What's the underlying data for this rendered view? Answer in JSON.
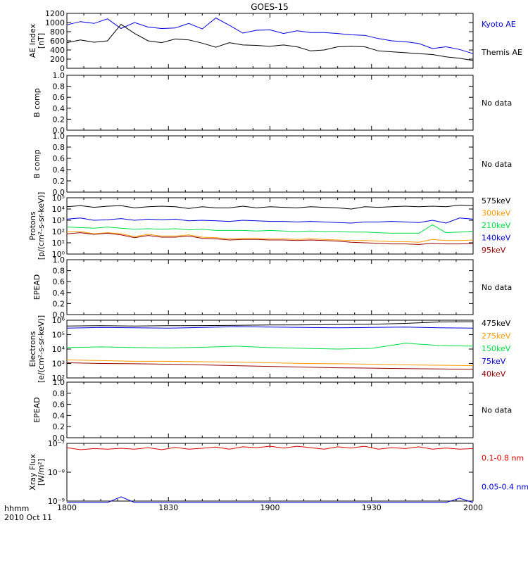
{
  "title": "GOES-15",
  "time_axis": {
    "ticks": [
      "1800",
      "1830",
      "1900",
      "1930",
      "2000"
    ],
    "label_line1": "hhmm",
    "label_line2": "2010 Oct 11"
  },
  "colors": {
    "black": "#000000",
    "blue": "#0000dd",
    "green": "#00dd44",
    "orange": "#ff9900",
    "darkred": "#990000",
    "red": "#dd0000"
  },
  "chart_data": [
    {
      "id": "ae",
      "type": "line",
      "ylabel": [
        "AE Index",
        "[nT]"
      ],
      "ylim": [
        0,
        1200
      ],
      "yscale": "linear",
      "yticks": [
        "0",
        "200",
        "400",
        "600",
        "800",
        "1000",
        "1200"
      ],
      "x": [
        0,
        4,
        8,
        12,
        16,
        20,
        24,
        28,
        32,
        36,
        40,
        44,
        48,
        52,
        56,
        60,
        64,
        68,
        72,
        76,
        80,
        84,
        88,
        92,
        96,
        100,
        104,
        108,
        112,
        116,
        120
      ],
      "series": [
        {
          "name": "Kyoto AE",
          "color": "blue",
          "values": [
            950,
            1020,
            980,
            1080,
            870,
            1000,
            900,
            870,
            880,
            980,
            860,
            1100,
            940,
            770,
            830,
            840,
            760,
            820,
            780,
            780,
            760,
            730,
            720,
            650,
            600,
            580,
            540,
            430,
            470,
            410,
            320
          ]
        },
        {
          "name": "Themis AE",
          "color": "black",
          "values": [
            560,
            620,
            570,
            600,
            960,
            760,
            600,
            560,
            640,
            620,
            550,
            460,
            560,
            510,
            500,
            480,
            510,
            470,
            380,
            400,
            470,
            480,
            470,
            380,
            360,
            340,
            320,
            300,
            250,
            220,
            170
          ]
        }
      ]
    },
    {
      "id": "bcomp1",
      "type": "line",
      "ylabel": [
        "B comp"
      ],
      "ylim": [
        0,
        1
      ],
      "yscale": "linear",
      "yticks": [
        "0.0",
        "0.2",
        "0.4",
        "0.6",
        "0.8",
        "1.0"
      ],
      "note": "No data",
      "series": []
    },
    {
      "id": "bcomp2",
      "type": "line",
      "ylabel": [
        "B comp"
      ],
      "ylim": [
        0,
        1
      ],
      "yscale": "linear",
      "yticks": [
        "0.0",
        "0.2",
        "0.4",
        "0.6",
        "0.8",
        "1.0"
      ],
      "note": "No data",
      "series": []
    },
    {
      "id": "protons",
      "type": "line",
      "ylabel": [
        "Protons",
        "[p/(cm²-s-sr-keV)]"
      ],
      "ylim": [
        0,
        5
      ],
      "yscale": "log",
      "yticks": [
        "10⁰",
        "10¹",
        "10²",
        "10³",
        "10⁴",
        "10⁵"
      ],
      "x": [
        0,
        4,
        8,
        12,
        16,
        20,
        24,
        28,
        32,
        36,
        40,
        44,
        48,
        52,
        56,
        60,
        64,
        68,
        72,
        76,
        80,
        84,
        88,
        92,
        96,
        100,
        104,
        108,
        112,
        116,
        120
      ],
      "series": [
        {
          "name": "575keV",
          "color": "black",
          "values": [
            4.2,
            4.3,
            4.15,
            4.25,
            4.3,
            4.1,
            4.2,
            4.25,
            4.2,
            4.05,
            4.2,
            4.1,
            4.1,
            4.25,
            4.1,
            4.2,
            4.15,
            4.1,
            4.2,
            4.15,
            4.1,
            4.0,
            4.2,
            4.15,
            4.2,
            4.25,
            4.2,
            4.25,
            4.2,
            4.35,
            4.3
          ]
        },
        {
          "name": "300keV",
          "color": "orange",
          "values": [
            2.0,
            2.0,
            1.8,
            1.9,
            1.8,
            1.55,
            1.75,
            1.6,
            1.6,
            1.7,
            1.5,
            1.45,
            1.35,
            1.4,
            1.4,
            1.35,
            1.35,
            1.3,
            1.35,
            1.3,
            1.25,
            1.2,
            1.2,
            1.15,
            1.1,
            1.1,
            1.05,
            1.3,
            1.2,
            1.2,
            1.25
          ]
        },
        {
          "name": "210keV",
          "color": "green",
          "values": [
            2.4,
            2.35,
            2.3,
            2.4,
            2.3,
            2.2,
            2.25,
            2.2,
            2.25,
            2.15,
            2.2,
            2.1,
            2.1,
            2.1,
            2.05,
            2.1,
            2.05,
            2.0,
            2.05,
            2.0,
            2.0,
            1.95,
            1.95,
            1.9,
            1.85,
            1.85,
            1.85,
            2.6,
            1.9,
            1.95,
            2.0
          ]
        },
        {
          "name": "140keV",
          "color": "blue",
          "values": [
            3.1,
            3.2,
            3.0,
            3.05,
            3.15,
            3.0,
            3.1,
            3.05,
            3.1,
            2.95,
            3.0,
            2.95,
            2.9,
            3.0,
            2.95,
            2.9,
            2.9,
            2.85,
            2.9,
            2.85,
            2.8,
            2.75,
            2.85,
            2.85,
            2.9,
            2.85,
            2.8,
            3.0,
            2.75,
            3.2,
            3.1
          ]
        },
        {
          "name": "95keV",
          "color": "darkred",
          "values": [
            1.8,
            1.9,
            1.75,
            1.85,
            1.7,
            1.45,
            1.65,
            1.5,
            1.5,
            1.6,
            1.4,
            1.35,
            1.25,
            1.3,
            1.3,
            1.25,
            1.25,
            1.2,
            1.25,
            1.2,
            1.15,
            1.05,
            1.0,
            0.95,
            0.9,
            0.9,
            0.85,
            0.95,
            0.9,
            0.9,
            0.95
          ]
        }
      ]
    },
    {
      "id": "epead1",
      "type": "line",
      "ylabel": [
        "EPEAD"
      ],
      "ylim": [
        0,
        1
      ],
      "yscale": "linear",
      "yticks": [
        "0.0",
        "0.2",
        "0.4",
        "0.6",
        "0.8",
        "1.0"
      ],
      "note": "No data",
      "series": []
    },
    {
      "id": "electrons",
      "type": "line",
      "ylabel": [
        "Electrons",
        "[e/(cm²-s-sr-keV)]"
      ],
      "ylim": [
        2,
        6
      ],
      "yscale": "log",
      "yticks": [
        "10²",
        "10³",
        "10⁴",
        "10⁵",
        "10⁶"
      ],
      "x": [
        0,
        10,
        20,
        30,
        40,
        50,
        60,
        70,
        80,
        90,
        100,
        110,
        120
      ],
      "series": [
        {
          "name": "475keV",
          "color": "black",
          "values": [
            5.6,
            5.62,
            5.6,
            5.62,
            5.63,
            5.65,
            5.67,
            5.68,
            5.7,
            5.72,
            5.78,
            5.88,
            5.9
          ]
        },
        {
          "name": "275keV",
          "color": "orange",
          "values": [
            3.25,
            3.2,
            3.15,
            3.15,
            3.12,
            3.1,
            3.05,
            3.0,
            2.98,
            2.95,
            2.9,
            2.88,
            2.85
          ]
        },
        {
          "name": "150keV",
          "color": "green",
          "values": [
            4.1,
            4.15,
            4.1,
            4.08,
            4.12,
            4.2,
            4.1,
            4.05,
            4.0,
            4.05,
            4.4,
            4.25,
            4.2
          ]
        },
        {
          "name": "75keV",
          "color": "blue",
          "values": [
            5.45,
            5.5,
            5.48,
            5.45,
            5.5,
            5.55,
            5.52,
            5.5,
            5.48,
            5.5,
            5.52,
            5.48,
            5.45
          ]
        },
        {
          "name": "40keV",
          "color": "darkred",
          "values": [
            3.05,
            3.0,
            2.98,
            2.95,
            2.9,
            2.85,
            2.8,
            2.75,
            2.7,
            2.68,
            2.65,
            2.62,
            2.6
          ]
        }
      ]
    },
    {
      "id": "epead2",
      "type": "line",
      "ylabel": [
        "EPEAD"
      ],
      "ylim": [
        0,
        1
      ],
      "yscale": "linear",
      "yticks": [
        "0.0",
        "0.2",
        "0.4",
        "0.6",
        "0.8",
        "1.0"
      ],
      "note": "No data",
      "series": []
    },
    {
      "id": "xray",
      "type": "line",
      "ylabel": [
        "Xray Flux",
        "[W/m²]"
      ],
      "ylim": [
        -9,
        -7
      ],
      "yscale": "log",
      "yticks": [
        "10⁻⁹",
        "10⁻⁸",
        "10⁻⁷"
      ],
      "x": [
        0,
        4,
        8,
        12,
        16,
        20,
        24,
        28,
        32,
        36,
        40,
        44,
        48,
        52,
        56,
        60,
        64,
        68,
        72,
        76,
        80,
        84,
        88,
        92,
        96,
        100,
        104,
        108,
        112,
        116,
        120
      ],
      "series": [
        {
          "name": "0.1-0.8 nm",
          "color": "red",
          "values": [
            -7.15,
            -7.22,
            -7.18,
            -7.2,
            -7.17,
            -7.2,
            -7.15,
            -7.22,
            -7.14,
            -7.2,
            -7.17,
            -7.13,
            -7.2,
            -7.12,
            -7.15,
            -7.1,
            -7.16,
            -7.1,
            -7.15,
            -7.2,
            -7.12,
            -7.16,
            -7.1,
            -7.2,
            -7.15,
            -7.18,
            -7.12,
            -7.2,
            -7.16,
            -7.2,
            -7.18
          ]
        },
        {
          "name": "0.05-0.4 nm",
          "color": "blue",
          "values": [
            -9.05,
            -9.05,
            -9.05,
            -9.05,
            -8.85,
            -9.05,
            -9.05,
            -9.05,
            -9.05,
            -9.05,
            -9.05,
            -9.05,
            -9.05,
            -9.05,
            -9.05,
            -9.05,
            -9.05,
            -9.05,
            -9.05,
            -9.05,
            -9.05,
            -9.05,
            -9.05,
            -9.05,
            -9.05,
            -9.05,
            -9.05,
            -9.05,
            -9.05,
            -8.9,
            -9.05
          ]
        }
      ]
    }
  ]
}
